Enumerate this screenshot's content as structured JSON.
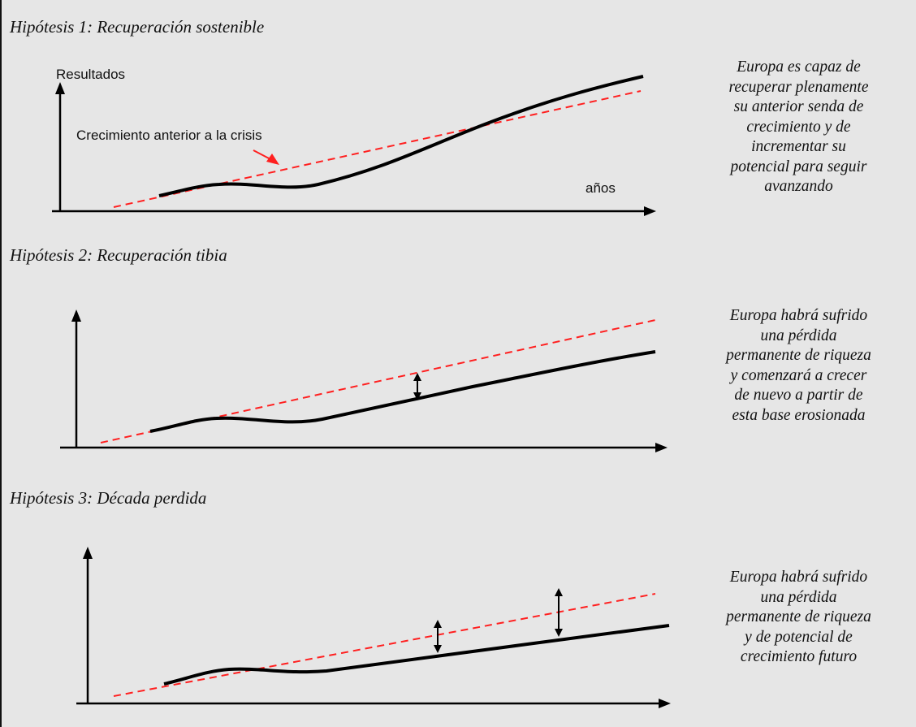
{
  "colors": {
    "background": "#e6e6e6",
    "trend_line": "#ff2020",
    "actual_line": "#000000"
  },
  "panels": [
    {
      "title": "Hipótesis 1: Recuperación sostenible",
      "y_axis_label": "Resultados",
      "x_axis_label": "años",
      "trend_callout": "Crecimiento anterior a la crisis",
      "description_lines": [
        "Europa es capaz de",
        "recuperar plenamente",
        "su anterior senda de",
        "crecimiento y de",
        "incrementar su",
        "potencial para seguir",
        "avanzando"
      ]
    },
    {
      "title": "Hipótesis 2: Recuperación tibia",
      "description_lines": [
        "Europa habrá sufrido",
        "una pérdida",
        "permanente de riqueza",
        "y comenzará a crecer",
        "de nuevo a partir de",
        "esta base erosionada"
      ]
    },
    {
      "title": "Hipótesis 3: Década perdida",
      "description_lines": [
        "Europa habrá sufrido",
        "una pérdida",
        "permanente de riqueza",
        "y de potencial de",
        "crecimiento futuro"
      ]
    }
  ]
}
